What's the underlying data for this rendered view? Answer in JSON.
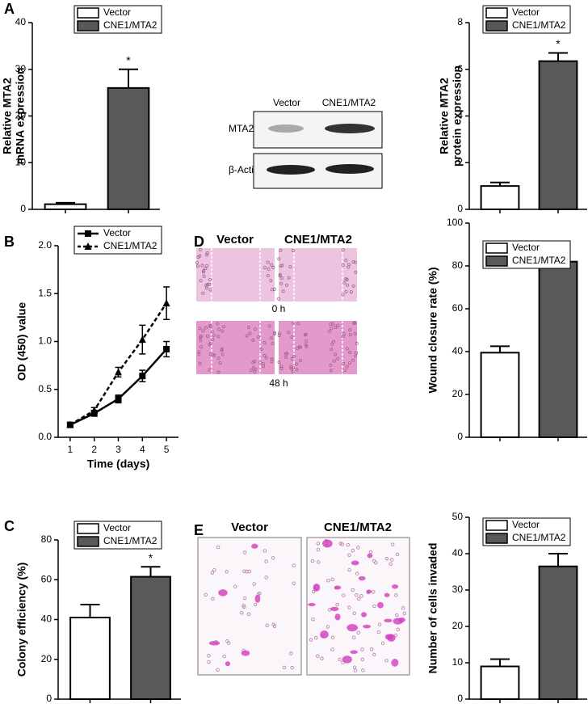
{
  "chart_data": [
    {
      "type": "bar",
      "ylabel": [
        "Relative MTA2",
        "mRNA expression"
      ],
      "ylim": [
        0,
        40
      ],
      "yticks": [
        0,
        10,
        20,
        30,
        40
      ],
      "annotation": "*",
      "series": [
        {
          "name": "Vector",
          "color": "#ffffff",
          "values": [
            1.1
          ],
          "errors": [
            0.3
          ]
        },
        {
          "name": "CNE1/MTA2",
          "color": "#595959",
          "values": [
            26
          ],
          "errors": [
            4
          ]
        }
      ]
    },
    {
      "type": "bar",
      "ylabel": [
        "Relative MTA2",
        "protein expression"
      ],
      "ylim": [
        0,
        8
      ],
      "yticks": [
        0,
        2,
        4,
        6,
        8
      ],
      "annotation": "*",
      "series": [
        {
          "name": "Vector",
          "color": "#ffffff",
          "values": [
            1.0
          ],
          "errors": [
            0.15
          ]
        },
        {
          "name": "CNE1/MTA2",
          "color": "#595959",
          "values": [
            6.35
          ],
          "errors": [
            0.35
          ]
        }
      ]
    },
    {
      "type": "line",
      "xlabel": "Time (days)",
      "ylabel": "OD (450) value",
      "x": [
        1,
        2,
        3,
        4,
        5
      ],
      "xlim": [
        0.5,
        5.5
      ],
      "xticks": [
        1,
        2,
        3,
        4,
        5
      ],
      "ylim": [
        0,
        2.0
      ],
      "yticks": [
        {
          "value": 0,
          "label": "0.0"
        },
        {
          "value": 0.5,
          "label": "0.5"
        },
        {
          "value": 1,
          "label": "1.0"
        },
        {
          "value": 1.5,
          "label": "1.5"
        },
        {
          "value": 2,
          "label": "2.0"
        }
      ],
      "series": [
        {
          "name": "Vector",
          "color": "#000000",
          "marker": "square",
          "dashed": false,
          "values": [
            0.13,
            0.25,
            0.4,
            0.64,
            0.92
          ],
          "errors": [
            0.02,
            0.03,
            0.04,
            0.06,
            0.08
          ]
        },
        {
          "name": "CNE1/MTA2",
          "color": "#000000",
          "marker": "triangle",
          "dashed": true,
          "values": [
            0.13,
            0.28,
            0.68,
            1.02,
            1.4
          ],
          "errors": [
            0.02,
            0.03,
            0.05,
            0.15,
            0.17
          ]
        }
      ]
    },
    {
      "type": "bar",
      "ylabel": "Wound closure rate (%)",
      "ylim": [
        0,
        100
      ],
      "yticks": [
        0,
        20,
        40,
        60,
        80,
        100
      ],
      "annotation": "*",
      "series": [
        {
          "name": "Vector",
          "color": "#ffffff",
          "values": [
            39.5
          ],
          "errors": [
            3
          ]
        },
        {
          "name": "CNE1/MTA2",
          "color": "#595959",
          "values": [
            82
          ],
          "errors": [
            3.5
          ]
        }
      ]
    },
    {
      "type": "bar",
      "ylabel": "Colony efficiency (%)",
      "ylim": [
        0,
        80
      ],
      "yticks": [
        0,
        20,
        40,
        60,
        80
      ],
      "annotation": "*",
      "series": [
        {
          "name": "Vector",
          "color": "#ffffff",
          "values": [
            41
          ],
          "errors": [
            6.5
          ]
        },
        {
          "name": "CNE1/MTA2",
          "color": "#595959",
          "values": [
            61.5
          ],
          "errors": [
            5
          ]
        }
      ]
    },
    {
      "type": "bar",
      "ylabel": "Number of cells invaded",
      "ylim": [
        0,
        50
      ],
      "yticks": [
        0,
        10,
        20,
        30,
        40,
        50
      ],
      "annotation": "*",
      "series": [
        {
          "name": "Vector",
          "color": "#ffffff",
          "values": [
            9
          ],
          "errors": [
            2
          ]
        },
        {
          "name": "CNE1/MTA2",
          "color": "#595959",
          "values": [
            36.5
          ],
          "errors": [
            3.5
          ]
        }
      ]
    }
  ],
  "panel_labels": [
    "A",
    "B",
    "C",
    "D",
    "E"
  ],
  "western_blot": {
    "columns": [
      "Vector",
      "CNE1/MTA2"
    ],
    "rows": [
      "MTA2",
      "β-Actin"
    ]
  },
  "wound_healing": {
    "columns": [
      "Vector",
      "CNE1/MTA2"
    ],
    "timepoints": [
      "0 h",
      "48 h"
    ]
  },
  "invasion": {
    "columns": [
      "Vector",
      "CNE1/MTA2"
    ]
  }
}
